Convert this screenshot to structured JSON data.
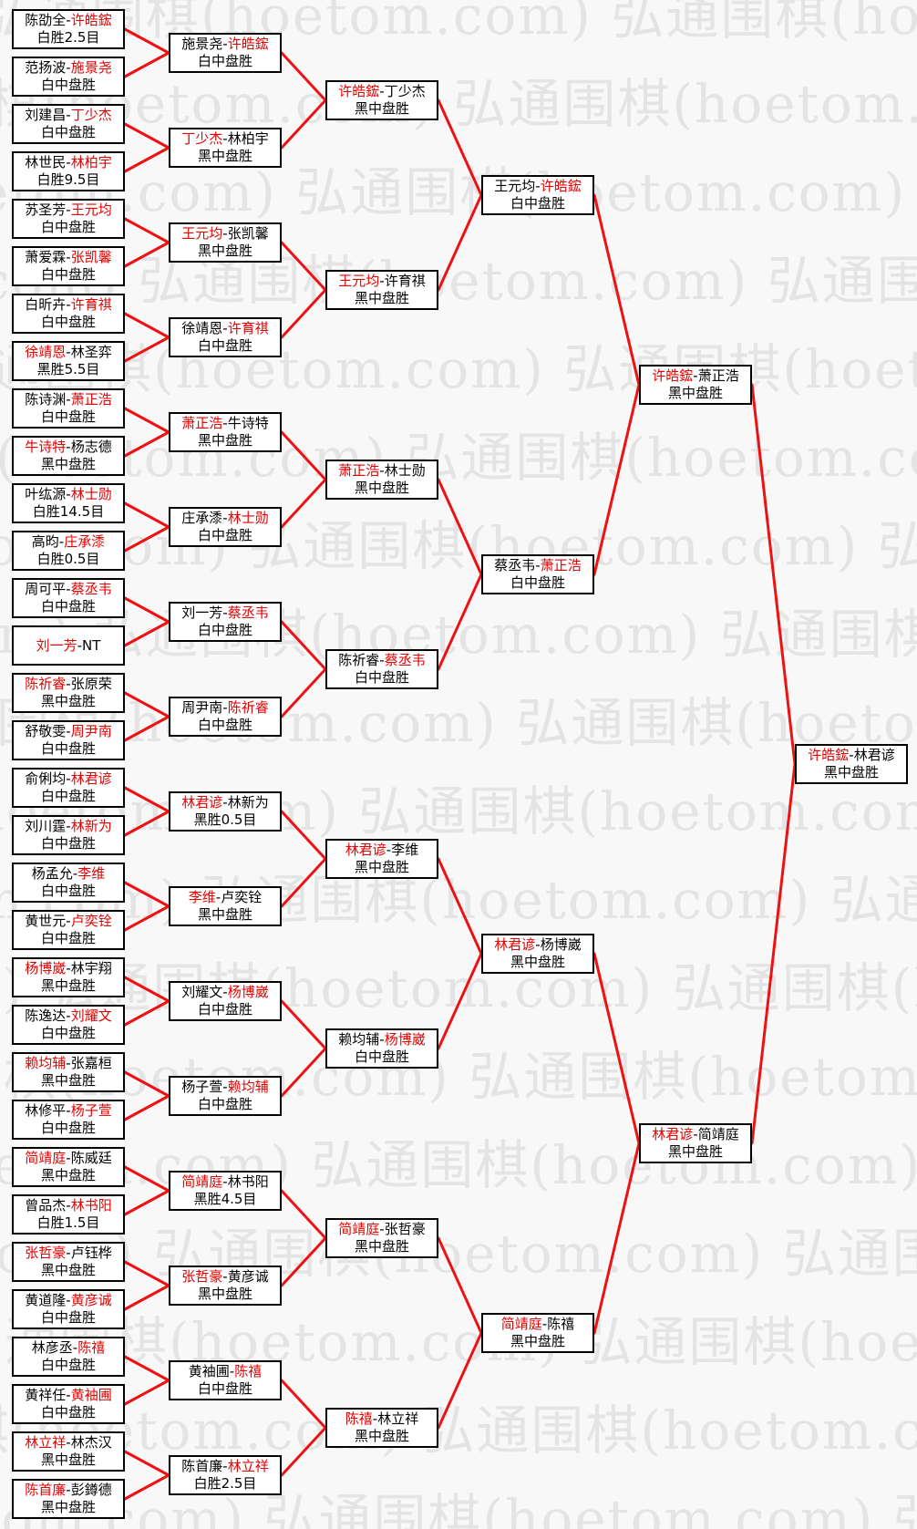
{
  "watermark": {
    "text": "弘通围棋(hoetom.com)"
  },
  "colors": {
    "page_background": "#f8f8f8",
    "box_background": "#ffffff",
    "box_border": "#000000",
    "winner_name": "#e60000",
    "connector_line": "#ee1111",
    "watermark_text": "#e4e4e4"
  },
  "rounds": [
    {
      "name": "round-of-64",
      "matches": [
        {
          "a": "陈劭全",
          "b": "许皓鋐",
          "winner": "b",
          "result": "白胜2.5目"
        },
        {
          "a": "范扬波",
          "b": "施景尧",
          "winner": "b",
          "result": "白中盘胜"
        },
        {
          "a": "刘建昌",
          "b": "丁少杰",
          "winner": "b",
          "result": "白中盘胜"
        },
        {
          "a": "林世民",
          "b": "林柏宇",
          "winner": "b",
          "result": "白胜9.5目"
        },
        {
          "a": "苏圣芳",
          "b": "王元均",
          "winner": "b",
          "result": "白中盘胜"
        },
        {
          "a": "萧爱霖",
          "b": "张凯馨",
          "winner": "b",
          "result": "白中盘胜"
        },
        {
          "a": "白昕卉",
          "b": "许育祺",
          "winner": "b",
          "result": "白中盘胜"
        },
        {
          "a": "徐靖恩",
          "b": "林圣弈",
          "winner": "a",
          "result": "黑胜5.5目"
        },
        {
          "a": "陈诗渊",
          "b": "萧正浩",
          "winner": "b",
          "result": "白中盘胜"
        },
        {
          "a": "牛诗特",
          "b": "杨志德",
          "winner": "a",
          "result": "黑中盘胜"
        },
        {
          "a": "叶纮源",
          "b": "林士勋",
          "winner": "b",
          "result": "白胜14.5目"
        },
        {
          "a": "高昀",
          "b": "庄承潻",
          "winner": "b",
          "result": "白胜0.5目"
        },
        {
          "a": "周可平",
          "b": "蔡丞韦",
          "winner": "b",
          "result": "白中盘胜"
        },
        {
          "a": "刘一芳",
          "b": "NT",
          "winner": "a",
          "result": ""
        },
        {
          "a": "陈祈睿",
          "b": "张原荣",
          "winner": "a",
          "result": "黑中盘胜"
        },
        {
          "a": "舒敬雯",
          "b": "周尹南",
          "winner": "b",
          "result": "白中盘胜"
        },
        {
          "a": "俞俐均",
          "b": "林君谚",
          "winner": "b",
          "result": "白中盘胜"
        },
        {
          "a": "刘川霆",
          "b": "林新为",
          "winner": "b",
          "result": "白中盘胜"
        },
        {
          "a": "杨孟允",
          "b": "李维",
          "winner": "b",
          "result": "白中盘胜"
        },
        {
          "a": "黄世元",
          "b": "卢奕铨",
          "winner": "b",
          "result": "白中盘胜"
        },
        {
          "a": "杨博崴",
          "b": "林宇翔",
          "winner": "a",
          "result": "黑中盘胜"
        },
        {
          "a": "陈逸达",
          "b": "刘耀文",
          "winner": "b",
          "result": "白中盘胜"
        },
        {
          "a": "赖均辅",
          "b": "张嘉桓",
          "winner": "a",
          "result": "黑中盘胜"
        },
        {
          "a": "林修平",
          "b": "杨子萱",
          "winner": "b",
          "result": "白中盘胜"
        },
        {
          "a": "简靖庭",
          "b": "陈威廷",
          "winner": "a",
          "result": "黑中盘胜"
        },
        {
          "a": "曾品杰",
          "b": "林书阳",
          "winner": "b",
          "result": "白胜1.5目"
        },
        {
          "a": "张哲豪",
          "b": "卢钰桦",
          "winner": "a",
          "result": "黑中盘胜"
        },
        {
          "a": "黄道隆",
          "b": "黄彦诚",
          "winner": "b",
          "result": "白中盘胜"
        },
        {
          "a": "林彦丞",
          "b": "陈禧",
          "winner": "b",
          "result": "白中盘胜"
        },
        {
          "a": "黄祥任",
          "b": "黄袖圃",
          "winner": "b",
          "result": "白中盘胜"
        },
        {
          "a": "林立祥",
          "b": "林杰汉",
          "winner": "a",
          "result": "黑中盘胜"
        },
        {
          "a": "陈首廉",
          "b": "彭鐏德",
          "winner": "a",
          "result": "黑中盘胜"
        }
      ]
    },
    {
      "name": "round-of-32",
      "matches": [
        {
          "a": "施景尧",
          "b": "许皓鋐",
          "winner": "b",
          "result": "白中盘胜"
        },
        {
          "a": "丁少杰",
          "b": "林柏宇",
          "winner": "a",
          "result": "黑中盘胜"
        },
        {
          "a": "王元均",
          "b": "张凯馨",
          "winner": "a",
          "result": "黑中盘胜"
        },
        {
          "a": "徐靖恩",
          "b": "许育祺",
          "winner": "b",
          "result": "白中盘胜"
        },
        {
          "a": "萧正浩",
          "b": "牛诗特",
          "winner": "a",
          "result": "黑中盘胜"
        },
        {
          "a": "庄承潻",
          "b": "林士勋",
          "winner": "b",
          "result": "白中盘胜"
        },
        {
          "a": "刘一芳",
          "b": "蔡丞韦",
          "winner": "b",
          "result": "白中盘胜"
        },
        {
          "a": "周尹南",
          "b": "陈祈睿",
          "winner": "b",
          "result": "白中盘胜"
        },
        {
          "a": "林君谚",
          "b": "林新为",
          "winner": "a",
          "result": "黑胜0.5目"
        },
        {
          "a": "李维",
          "b": "卢奕铨",
          "winner": "a",
          "result": "黑中盘胜"
        },
        {
          "a": "刘耀文",
          "b": "杨博崴",
          "winner": "b",
          "result": "白中盘胜"
        },
        {
          "a": "杨子萱",
          "b": "赖均辅",
          "winner": "b",
          "result": "白中盘胜"
        },
        {
          "a": "简靖庭",
          "b": "林书阳",
          "winner": "a",
          "result": "黑胜4.5目"
        },
        {
          "a": "张哲豪",
          "b": "黄彦诚",
          "winner": "a",
          "result": "黑中盘胜"
        },
        {
          "a": "黄袖圃",
          "b": "陈禧",
          "winner": "b",
          "result": "白中盘胜"
        },
        {
          "a": "陈首廉",
          "b": "林立祥",
          "winner": "b",
          "result": "白胜2.5目"
        }
      ]
    },
    {
      "name": "round-of-16",
      "matches": [
        {
          "a": "许皓鋐",
          "b": "丁少杰",
          "winner": "a",
          "result": "黑中盘胜"
        },
        {
          "a": "王元均",
          "b": "许育祺",
          "winner": "a",
          "result": "黑中盘胜"
        },
        {
          "a": "萧正浩",
          "b": "林士勋",
          "winner": "a",
          "result": "黑中盘胜"
        },
        {
          "a": "陈祈睿",
          "b": "蔡丞韦",
          "winner": "b",
          "result": "白中盘胜"
        },
        {
          "a": "林君谚",
          "b": "李维",
          "winner": "a",
          "result": "黑中盘胜"
        },
        {
          "a": "赖均辅",
          "b": "杨博崴",
          "winner": "b",
          "result": "白中盘胜"
        },
        {
          "a": "简靖庭",
          "b": "张哲豪",
          "winner": "a",
          "result": "黑中盘胜"
        },
        {
          "a": "陈禧",
          "b": "林立祥",
          "winner": "a",
          "result": "黑中盘胜"
        }
      ]
    },
    {
      "name": "quarterfinals",
      "matches": [
        {
          "a": "王元均",
          "b": "许皓鋐",
          "winner": "b",
          "result": "白中盘胜"
        },
        {
          "a": "蔡丞韦",
          "b": "萧正浩",
          "winner": "b",
          "result": "白中盘胜"
        },
        {
          "a": "林君谚",
          "b": "杨博崴",
          "winner": "a",
          "result": "黑中盘胜"
        },
        {
          "a": "简靖庭",
          "b": "陈禧",
          "winner": "a",
          "result": "黑中盘胜"
        }
      ]
    },
    {
      "name": "semifinals",
      "matches": [
        {
          "a": "许皓鋐",
          "b": "萧正浩",
          "winner": "a",
          "result": "黑中盘胜"
        },
        {
          "a": "林君谚",
          "b": "简靖庭",
          "winner": "a",
          "result": "黑中盘胜"
        }
      ]
    },
    {
      "name": "final",
      "matches": [
        {
          "a": "许皓鋐",
          "b": "林君谚",
          "winner": "a",
          "result": "黑中盘胜"
        }
      ]
    }
  ]
}
